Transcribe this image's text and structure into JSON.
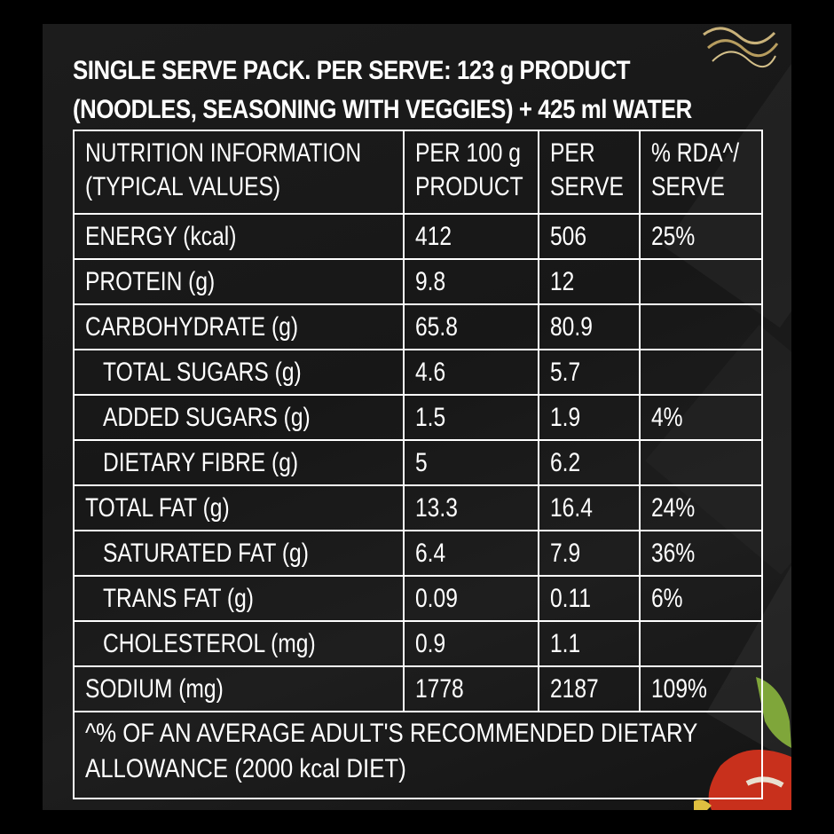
{
  "heading": {
    "line1": "SINGLE SERVE PACK. PER SERVE: 123 g PRODUCT",
    "line2": "(NOODLES, SEASONING WITH VEGGIES) + 425 ml WATER"
  },
  "table": {
    "headers": {
      "nutrient": [
        "NUTRITION INFORMATION",
        "(TYPICAL VALUES)"
      ],
      "per100": [
        "PER 100 g",
        "PRODUCT"
      ],
      "perServe": [
        "PER",
        "SERVE"
      ],
      "rda": [
        "% RDA^/",
        "SERVE"
      ]
    },
    "rows": [
      {
        "name": "ENERGY (kcal)",
        "per100": "412",
        "perServe": "506",
        "rda": "25%"
      },
      {
        "name": "PROTEIN (g)",
        "per100": "9.8",
        "perServe": "12",
        "rda": ""
      },
      {
        "name": "CARBOHYDRATE (g)",
        "per100": "65.8",
        "perServe": "80.9",
        "rda": ""
      },
      {
        "name": "TOTAL SUGARS (g)",
        "per100": "4.6",
        "perServe": "5.7",
        "rda": ""
      },
      {
        "name": "ADDED SUGARS (g)",
        "per100": "1.5",
        "perServe": "1.9",
        "rda": "4%"
      },
      {
        "name": "DIETARY FIBRE (g)",
        "per100": "5",
        "perServe": "6.2",
        "rda": ""
      },
      {
        "name": "TOTAL FAT (g)",
        "per100": "13.3",
        "perServe": "16.4",
        "rda": "24%"
      },
      {
        "name": "SATURATED FAT (g)",
        "per100": "6.4",
        "perServe": "7.9",
        "rda": "36%"
      },
      {
        "name": "TRANS FAT (g)",
        "per100": "0.09",
        "perServe": "0.11",
        "rda": "6%"
      },
      {
        "name": "CHOLESTEROL (mg)",
        "per100": "0.9",
        "perServe": "1.1",
        "rda": ""
      },
      {
        "name": "SODIUM (mg)",
        "per100": "1778",
        "perServe": "2187",
        "rda": "109%"
      }
    ],
    "footnote": [
      "^% OF AN AVERAGE ADULT'S RECOMMENDED DIETARY",
      "ALLOWANCE (2000 kcal DIET)"
    ]
  },
  "colors": {
    "background": "#000000",
    "panel": "#1a1a1a",
    "text": "#ffffff",
    "rule": "#ffffff"
  }
}
